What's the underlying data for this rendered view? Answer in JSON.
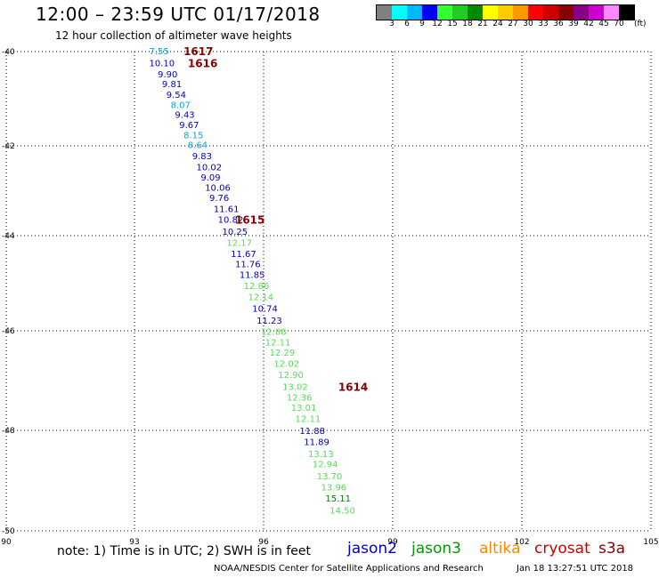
{
  "header": {
    "title": "12:00 – 23:59 UTC 01/17/2018",
    "subtitle": "12 hour collection of altimeter wave heights"
  },
  "colorbar": {
    "unit": "(ft)",
    "colors": [
      "#808080",
      "#00ffff",
      "#00b8ff",
      "#0000ff",
      "#33ff33",
      "#22cc22",
      "#008800",
      "#ffff00",
      "#ffcc00",
      "#ff9900",
      "#ff0000",
      "#cc0000",
      "#880000",
      "#880088",
      "#cc00cc",
      "#ff88ff",
      "#000000"
    ],
    "labels": [
      "3",
      "6",
      "9",
      "12",
      "15",
      "18",
      "21",
      "24",
      "27",
      "30",
      "33",
      "36",
      "39",
      "42",
      "45",
      "70"
    ]
  },
  "footer": {
    "note": "note: 1) Time is in UTC; 2) SWH is in feet",
    "credit": "NOAA/NESDIS Center for Satellite Applications and Research",
    "timestamp": "Jan 18 13:27:51 UTC 2018"
  },
  "legend": [
    {
      "name": "jason2",
      "color": "#0000cc"
    },
    {
      "name": "jason3",
      "color": "#009900"
    },
    {
      "name": "altika",
      "color": "#ff8800"
    },
    {
      "name": "cryosat",
      "color": "#cc0000"
    },
    {
      "name": "s3a",
      "color": "#880000"
    }
  ],
  "chart_data": {
    "type": "scatter",
    "xlim": [
      90,
      105
    ],
    "ylim": [
      -50,
      -40
    ],
    "x_ticks": [
      "90",
      "93",
      "96",
      "99",
      "102",
      "105"
    ],
    "y_ticks": [
      "-40",
      "-42",
      "-44",
      "-46",
      "-48",
      "-50"
    ],
    "grid": true,
    "points": [
      {
        "lon": 93.2,
        "lat": -40.0,
        "label": "7.55",
        "color": "#00aadd"
      },
      {
        "lon": 93.2,
        "lat": -40.25,
        "label": "10.10",
        "color": "#0000cc"
      },
      {
        "lon": 93.4,
        "lat": -40.48,
        "label": "9.90",
        "color": "#0000cc"
      },
      {
        "lon": 93.5,
        "lat": -40.69,
        "label": "9.81",
        "color": "#0000cc"
      },
      {
        "lon": 93.6,
        "lat": -40.91,
        "label": "9.54",
        "color": "#0000cc"
      },
      {
        "lon": 93.7,
        "lat": -41.12,
        "label": "8.07",
        "color": "#00aadd"
      },
      {
        "lon": 93.8,
        "lat": -41.33,
        "label": "9.43",
        "color": "#0000cc"
      },
      {
        "lon": 93.9,
        "lat": -41.54,
        "label": "9.67",
        "color": "#0000cc"
      },
      {
        "lon": 94.0,
        "lat": -41.75,
        "label": "8.15",
        "color": "#00aadd"
      },
      {
        "lon": 94.1,
        "lat": -41.96,
        "label": "8.64",
        "color": "#00aadd"
      },
      {
        "lon": 94.2,
        "lat": -42.19,
        "label": "9.83",
        "color": "#0000cc"
      },
      {
        "lon": 94.3,
        "lat": -42.42,
        "label": "10.02",
        "color": "#0000cc"
      },
      {
        "lon": 94.4,
        "lat": -42.63,
        "label": "9.09",
        "color": "#0000cc"
      },
      {
        "lon": 94.5,
        "lat": -42.85,
        "label": "10.06",
        "color": "#0000cc"
      },
      {
        "lon": 94.6,
        "lat": -43.06,
        "label": "9.76",
        "color": "#0000cc"
      },
      {
        "lon": 94.7,
        "lat": -43.29,
        "label": "11.61",
        "color": "#0000cc"
      },
      {
        "lon": 94.8,
        "lat": -43.52,
        "label": "10.82",
        "color": "#0000cc"
      },
      {
        "lon": 94.9,
        "lat": -43.77,
        "label": "10.25",
        "color": "#0000cc"
      },
      {
        "lon": 95.0,
        "lat": -44.0,
        "label": "12.17",
        "color": "#55dd55"
      },
      {
        "lon": 95.1,
        "lat": -44.23,
        "label": "11.67",
        "color": "#0000cc"
      },
      {
        "lon": 95.2,
        "lat": -44.44,
        "label": "11.76",
        "color": "#0000cc"
      },
      {
        "lon": 95.3,
        "lat": -44.67,
        "label": "11.85",
        "color": "#0000cc"
      },
      {
        "lon": 95.4,
        "lat": -44.9,
        "label": "12.86",
        "color": "#55dd55"
      },
      {
        "lon": 95.5,
        "lat": -45.13,
        "label": "12.14",
        "color": "#55dd55"
      },
      {
        "lon": 95.6,
        "lat": -45.37,
        "label": "10.74",
        "color": "#0000cc"
      },
      {
        "lon": 95.7,
        "lat": -45.62,
        "label": "11.23",
        "color": "#0000cc"
      },
      {
        "lon": 95.8,
        "lat": -45.85,
        "label": "12.88",
        "color": "#55dd55"
      },
      {
        "lon": 95.9,
        "lat": -46.08,
        "label": "12.11",
        "color": "#55dd55"
      },
      {
        "lon": 96.0,
        "lat": -46.29,
        "label": "12.29",
        "color": "#55dd55"
      },
      {
        "lon": 96.1,
        "lat": -46.52,
        "label": "12.02",
        "color": "#55dd55"
      },
      {
        "lon": 96.2,
        "lat": -46.75,
        "label": "12.90",
        "color": "#55dd55"
      },
      {
        "lon": 96.3,
        "lat": -47.0,
        "label": "13.02",
        "color": "#55dd55"
      },
      {
        "lon": 96.4,
        "lat": -47.23,
        "label": "12.36",
        "color": "#55dd55"
      },
      {
        "lon": 96.5,
        "lat": -47.44,
        "label": "13.01",
        "color": "#55dd55"
      },
      {
        "lon": 96.6,
        "lat": -47.67,
        "label": "12.11",
        "color": "#55dd55"
      },
      {
        "lon": 96.7,
        "lat": -47.92,
        "label": "11.88",
        "color": "#0000cc"
      },
      {
        "lon": 96.8,
        "lat": -48.15,
        "label": "11.89",
        "color": "#0000cc"
      },
      {
        "lon": 96.9,
        "lat": -48.4,
        "label": "13.13",
        "color": "#55dd55"
      },
      {
        "lon": 97.0,
        "lat": -48.62,
        "label": "12.94",
        "color": "#55dd55"
      },
      {
        "lon": 97.1,
        "lat": -48.87,
        "label": "13.70",
        "color": "#55dd55"
      },
      {
        "lon": 97.2,
        "lat": -49.1,
        "label": "13.96",
        "color": "#55dd55"
      },
      {
        "lon": 97.3,
        "lat": -49.33,
        "label": "15.11",
        "color": "#008800"
      },
      {
        "lon": 97.4,
        "lat": -49.58,
        "label": "14.50",
        "color": "#55dd55"
      }
    ],
    "time_labels": [
      {
        "lon": 94.0,
        "lat": -40.0,
        "label": "1617",
        "color": "#880000"
      },
      {
        "lon": 94.1,
        "lat": -40.25,
        "label": "1616",
        "color": "#880000"
      },
      {
        "lon": 95.2,
        "lat": -43.52,
        "label": "1615",
        "color": "#880000"
      },
      {
        "lon": 97.6,
        "lat": -47.0,
        "label": "1614",
        "color": "#880000"
      }
    ]
  }
}
